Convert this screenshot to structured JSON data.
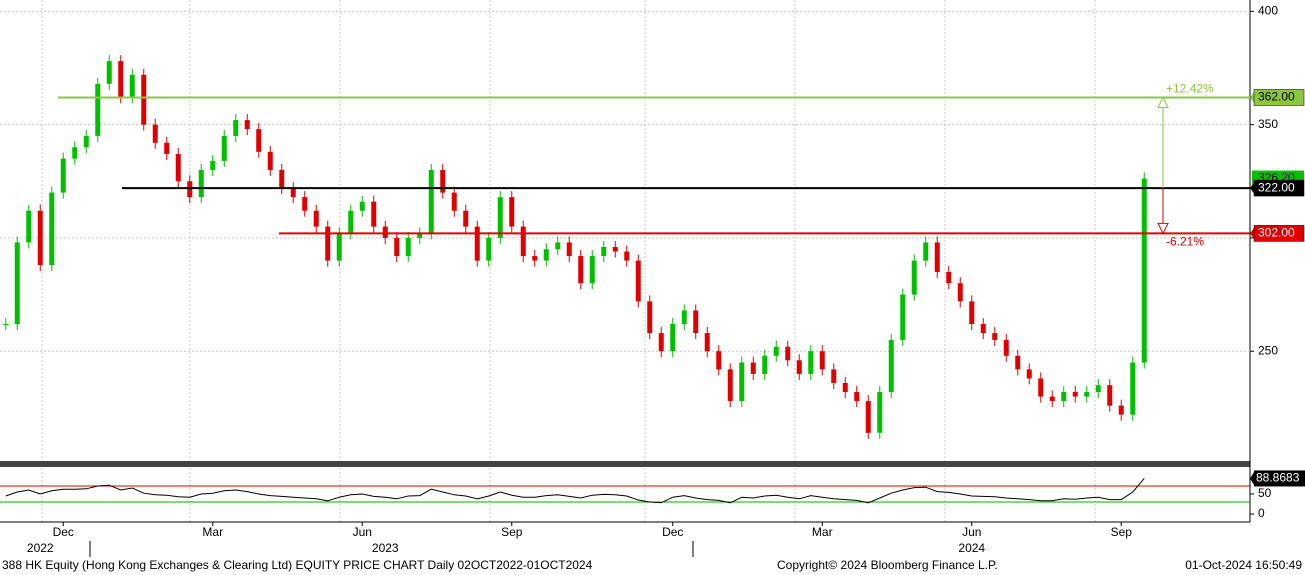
{
  "chart_data": [
    {
      "type": "candlestick",
      "categories": [
        null,
        null,
        null,
        null,
        null,
        "Dec",
        null,
        null,
        null,
        null,
        null,
        null,
        null,
        null,
        null,
        null,
        null,
        null,
        "Mar",
        null,
        null,
        null,
        null,
        null,
        null,
        null,
        null,
        null,
        null,
        null,
        null,
        "Jun",
        null,
        null,
        null,
        null,
        null,
        null,
        null,
        null,
        null,
        null,
        null,
        null,
        "Sep",
        null,
        null,
        null,
        null,
        null,
        null,
        null,
        null,
        null,
        null,
        null,
        null,
        null,
        "Dec",
        null,
        null,
        null,
        null,
        null,
        null,
        null,
        null,
        null,
        null,
        null,
        null,
        "Mar",
        null,
        null,
        null,
        null,
        null,
        null,
        null,
        null,
        null,
        null,
        null,
        null,
        "Jun",
        null,
        null,
        null,
        null,
        null,
        null,
        null,
        null,
        null,
        null,
        null,
        null,
        "Sep",
        null,
        null
      ],
      "year_categories": [
        null,
        null,
        null,
        "2022",
        null,
        null,
        null,
        null,
        null,
        null,
        null,
        null,
        null,
        null,
        null,
        null,
        null,
        null,
        null,
        null,
        null,
        null,
        null,
        null,
        null,
        null,
        null,
        null,
        null,
        null,
        null,
        null,
        null,
        "2023",
        null,
        null,
        null,
        null,
        null,
        null,
        null,
        null,
        null,
        null,
        null,
        null,
        null,
        null,
        null,
        null,
        null,
        null,
        null,
        null,
        null,
        null,
        null,
        null,
        null,
        null,
        null,
        null,
        null,
        null,
        null,
        null,
        null,
        null,
        null,
        null,
        null,
        null,
        null,
        null,
        null,
        null,
        null,
        null,
        null,
        null,
        null,
        null,
        null,
        null,
        "2024",
        null,
        null,
        null,
        null,
        null,
        null,
        null,
        null,
        null,
        null,
        null,
        null,
        null,
        null,
        null
      ],
      "values": [
        262,
        298,
        312,
        288,
        320,
        335,
        340,
        345,
        368,
        378,
        362,
        372,
        350,
        342,
        337,
        325,
        318,
        330,
        334,
        345,
        352,
        348,
        338,
        330,
        322,
        318,
        312,
        305,
        290,
        302,
        312,
        316,
        305,
        300,
        292,
        300,
        302,
        330,
        320,
        312,
        305,
        290,
        300,
        318,
        305,
        292,
        290,
        295,
        298,
        292,
        280,
        292,
        296,
        294,
        290,
        272,
        258,
        250,
        262,
        268,
        258,
        250,
        242,
        228,
        245,
        240,
        248,
        252,
        246,
        240,
        250,
        242,
        236,
        232,
        228,
        214,
        232,
        255,
        275,
        290,
        298,
        285,
        280,
        272,
        262,
        258,
        255,
        248,
        242,
        238,
        230,
        228,
        232,
        230,
        232,
        235,
        226,
        222,
        245,
        326.2
      ],
      "up_color": "#00c000",
      "down_color": "#e00000",
      "last_price": {
        "value": 326.2,
        "label": "326.20"
      },
      "ylim": [
        202,
        405
      ],
      "yticks": [
        250,
        300,
        350,
        400
      ],
      "grid": true,
      "levels": [
        {
          "value": 362,
          "label": "362.00",
          "color": "#8cc63f"
        },
        {
          "value": 322,
          "label": "322.00",
          "color": "#000000"
        },
        {
          "value": 302,
          "label": "302.00",
          "color": "#e00000"
        }
      ],
      "annotations": [
        {
          "text": "+12.42%",
          "color": "#8cc63f"
        },
        {
          "text": "-6.21%",
          "color": "#e00000"
        }
      ]
    },
    {
      "type": "line",
      "color": "#000000",
      "values": [
        45,
        55,
        60,
        50,
        58,
        62,
        62,
        63,
        70,
        72,
        60,
        65,
        52,
        48,
        47,
        43,
        42,
        50,
        52,
        58,
        60,
        56,
        50,
        46,
        44,
        42,
        40,
        38,
        33,
        42,
        48,
        50,
        44,
        42,
        38,
        45,
        46,
        62,
        55,
        48,
        45,
        38,
        45,
        55,
        47,
        42,
        42,
        46,
        48,
        44,
        40,
        47,
        49,
        48,
        45,
        35,
        30,
        28,
        42,
        46,
        40,
        36,
        34,
        28,
        42,
        40,
        45,
        47,
        42,
        38,
        46,
        42,
        38,
        36,
        34,
        28,
        40,
        52,
        60,
        66,
        67,
        56,
        54,
        50,
        45,
        44,
        43,
        40,
        38,
        36,
        33,
        33,
        38,
        37,
        40,
        42,
        36,
        36,
        55,
        88.8683
      ],
      "last_value": {
        "value": 88.8683,
        "label": "88.8683"
      },
      "ylim": [
        -20,
        115
      ],
      "yticks": [
        0,
        50
      ],
      "bands": [
        {
          "value": 70,
          "color": "#e00000"
        },
        {
          "value": 30,
          "color": "#00b000"
        }
      ]
    }
  ],
  "footer": {
    "left": "388 HK Equity (Hong Kong Exchanges & Clearing Ltd) EQUITY PRICE CHART  Daily 02OCT2022-01OCT2024",
    "center": "Copyright© 2024 Bloomberg Finance L.P.",
    "right": "01-Oct-2024 16:50:49"
  }
}
